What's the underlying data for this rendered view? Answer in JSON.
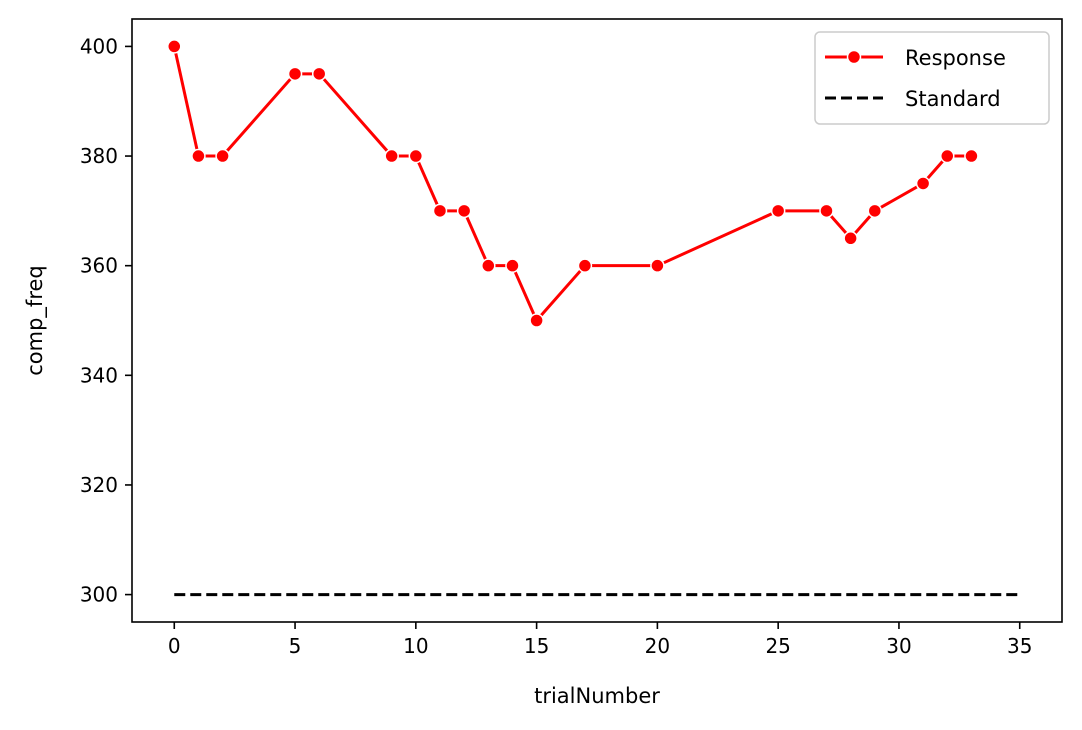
{
  "chart_data": {
    "type": "line",
    "title": "",
    "xlabel": "trialNumber",
    "ylabel": "comp_freq",
    "xlim": [
      -1.75,
      36.75
    ],
    "ylim": [
      295,
      405
    ],
    "xticks": [
      0,
      5,
      10,
      15,
      20,
      25,
      30,
      35
    ],
    "yticks": [
      300,
      320,
      340,
      360,
      380,
      400
    ],
    "grid": false,
    "legend_position": "top-right",
    "series": [
      {
        "name": "Response",
        "color": "#ff0000",
        "style": "solid",
        "marker": "circle",
        "x": [
          0,
          1,
          2,
          5,
          6,
          9,
          10,
          11,
          12,
          13,
          14,
          15,
          17,
          20,
          25,
          27,
          28,
          29,
          31,
          32,
          33
        ],
        "y": [
          400,
          380,
          380,
          395,
          395,
          380,
          380,
          370,
          370,
          360,
          360,
          350,
          360,
          360,
          370,
          370,
          365,
          370,
          375,
          380,
          380
        ]
      },
      {
        "name": "Standard",
        "color": "#000000",
        "style": "dashed",
        "marker": "none",
        "x": [
          0,
          35
        ],
        "y": [
          300,
          300
        ]
      }
    ]
  }
}
